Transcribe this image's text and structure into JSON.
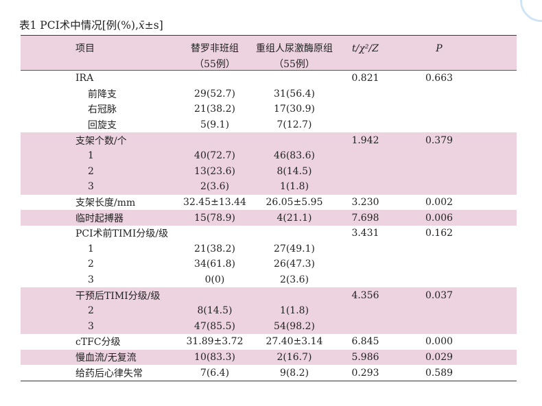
{
  "caption": {
    "prefix": "表1 PCI术中情况[例(%),",
    "xbar": "x̄",
    "suffix": "±s]"
  },
  "header": {
    "item": "项目",
    "group1_line1": "替罗非班组",
    "group1_line2": "（55例）",
    "group2_line1": "重组人尿激酶原组",
    "group2_line2": "（55例）",
    "stat": "t/χ²/Z",
    "p": "P"
  },
  "rows": [
    {
      "item": "IRA",
      "g1": "",
      "g2": "",
      "stat": "0.821",
      "p": "0.663"
    },
    {
      "item": "前降支",
      "g1": "29(52.7)",
      "g2": "31(56.4)",
      "stat": "",
      "p": ""
    },
    {
      "item": "右冠脉",
      "g1": "21(38.2)",
      "g2": "17(30.9)",
      "stat": "",
      "p": ""
    },
    {
      "item": "回旋支",
      "g1": "5(9.1)",
      "g2": "7(12.7)",
      "stat": "",
      "p": ""
    },
    {
      "item": "支架个数/个",
      "g1": "",
      "g2": "",
      "stat": "1.942",
      "p": "0.379"
    },
    {
      "item": "1",
      "g1": "40(72.7)",
      "g2": "46(83.6)",
      "stat": "",
      "p": ""
    },
    {
      "item": "2",
      "g1": "13(23.6)",
      "g2": "8(14.5)",
      "stat": "",
      "p": ""
    },
    {
      "item": "3",
      "g1": "2(3.6)",
      "g2": "1(1.8)",
      "stat": "",
      "p": ""
    },
    {
      "item": "支架长度/mm",
      "g1": "32.45±13.44",
      "g2": "26.05±5.95",
      "stat": "3.230",
      "p": "0.002"
    },
    {
      "item": "临时起搏器",
      "g1": "15(78.9)",
      "g2": "4(21.1)",
      "stat": "7.698",
      "p": "0.006"
    },
    {
      "item": "PCI术前TIMI分级/级",
      "g1": "",
      "g2": "",
      "stat": "3.431",
      "p": "0.162"
    },
    {
      "item": "1",
      "g1": "21(38.2)",
      "g2": "27(49.1)",
      "stat": "",
      "p": ""
    },
    {
      "item": "2",
      "g1": "34(61.8)",
      "g2": "26(47.3)",
      "stat": "",
      "p": ""
    },
    {
      "item": "3",
      "g1": "0(0)",
      "g2": "2(3.6)",
      "stat": "",
      "p": ""
    },
    {
      "item": "干预后TIMI分级/级",
      "g1": "",
      "g2": "",
      "stat": "4.356",
      "p": "0.037"
    },
    {
      "item": "2",
      "g1": "8(14.5)",
      "g2": "1(1.8)",
      "stat": "",
      "p": ""
    },
    {
      "item": "3",
      "g1": "47(85.5)",
      "g2": "54(98.2)",
      "stat": "",
      "p": ""
    },
    {
      "item": "cTFC分级",
      "g1": "31.89±3.72",
      "g2": "27.40±3.14",
      "stat": "6.845",
      "p": "0.000"
    },
    {
      "item": "慢血流/无复流",
      "g1": "10(83.3)",
      "g2": "2(16.7)",
      "stat": "5.986",
      "p": "0.029"
    },
    {
      "item": "给药后心律失常",
      "g1": "7(6.4)",
      "g2": "9(8.2)",
      "stat": "0.293",
      "p": "0.589"
    }
  ],
  "colors": {
    "shade": "#ecd3df",
    "rule": "#333333"
  }
}
